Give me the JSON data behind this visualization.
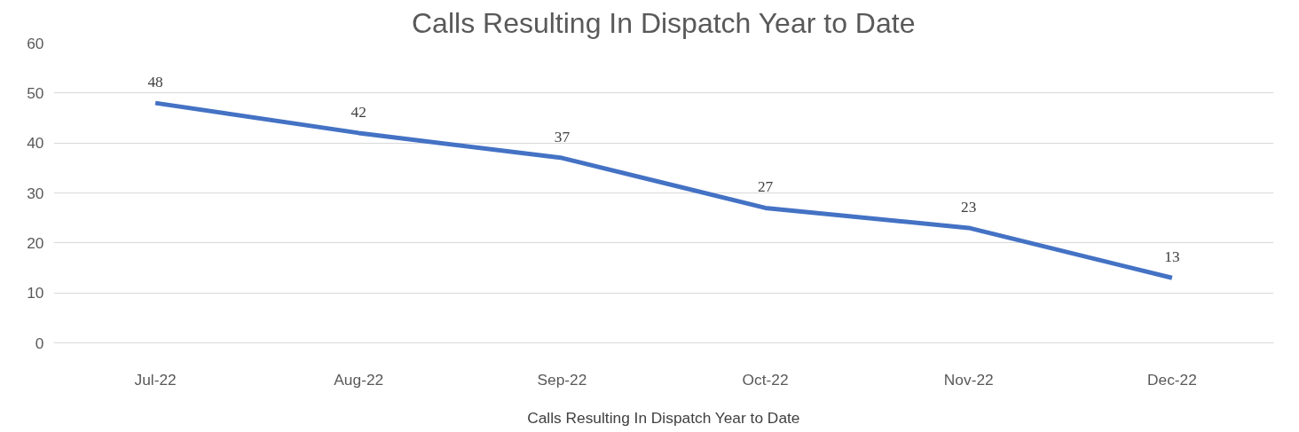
{
  "chart_data": {
    "type": "line",
    "title": "Calls Resulting In Dispatch Year to Date",
    "xlabel": "Calls Resulting In Dispatch Year to Date",
    "categories": [
      "Jul-22",
      "Aug-22",
      "Sep-22",
      "Oct-22",
      "Nov-22",
      "Dec-22"
    ],
    "series": [
      {
        "color": "#4472c4",
        "values": [
          48,
          42,
          37,
          27,
          23,
          13
        ]
      }
    ],
    "ylim": [
      0,
      60
    ],
    "yticks": [
      0,
      10,
      20,
      30,
      40,
      50,
      60
    ],
    "grid": "y",
    "data_labels": true
  }
}
